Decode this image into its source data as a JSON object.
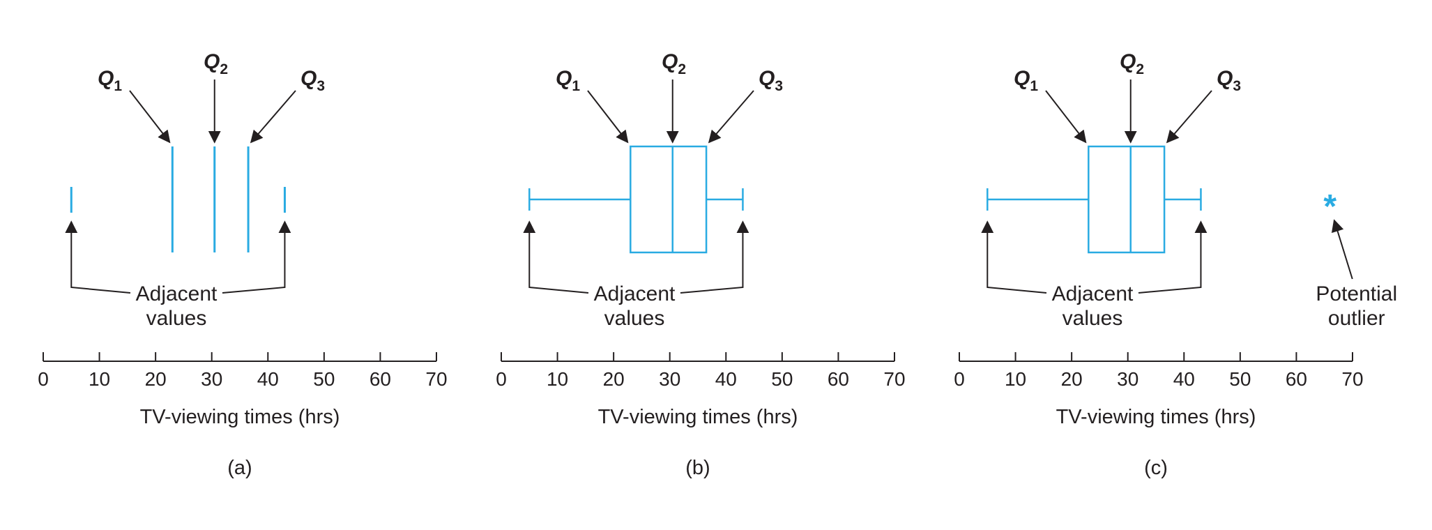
{
  "colors": {
    "box": "#29abe2",
    "ink": "#231f20",
    "outlier": "#29abe2"
  },
  "panels": [
    {
      "caption": "(a)",
      "style": "lines",
      "q_labels": {
        "q1": "Q",
        "q1_sub": "1",
        "q2": "Q",
        "q2_sub": "2",
        "q3": "Q",
        "q3_sub": "3"
      },
      "adjacent_label": [
        "Adjacent",
        "values"
      ],
      "axis_title": "TV-viewing times (hrs)",
      "ticks": [
        "0",
        "10",
        "20",
        "30",
        "40",
        "50",
        "60",
        "70"
      ]
    },
    {
      "caption": "(b)",
      "style": "box",
      "q_labels": {
        "q1": "Q",
        "q1_sub": "1",
        "q2": "Q",
        "q2_sub": "2",
        "q3": "Q",
        "q3_sub": "3"
      },
      "adjacent_label": [
        "Adjacent",
        "values"
      ],
      "axis_title": "TV-viewing times (hrs)",
      "ticks": [
        "0",
        "10",
        "20",
        "30",
        "40",
        "50",
        "60",
        "70"
      ]
    },
    {
      "caption": "(c)",
      "style": "box",
      "q_labels": {
        "q1": "Q",
        "q1_sub": "1",
        "q2": "Q",
        "q2_sub": "2",
        "q3": "Q",
        "q3_sub": "3"
      },
      "adjacent_label": [
        "Adjacent",
        "values"
      ],
      "axis_title": "TV-viewing times (hrs)",
      "ticks": [
        "0",
        "10",
        "20",
        "30",
        "40",
        "50",
        "60",
        "70"
      ],
      "outlier_label": [
        "Potential",
        "outlier"
      ],
      "outlier_symbol": "*"
    }
  ],
  "stats": {
    "min": 5,
    "q1": 23,
    "median": 30.5,
    "q3": 36.5,
    "max": 43,
    "outlier": 66,
    "axis_max": 70
  }
}
